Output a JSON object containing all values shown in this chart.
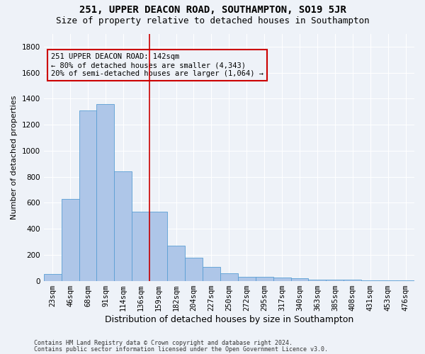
{
  "title": "251, UPPER DEACON ROAD, SOUTHAMPTON, SO19 5JR",
  "subtitle": "Size of property relative to detached houses in Southampton",
  "xlabel": "Distribution of detached houses by size in Southampton",
  "ylabel": "Number of detached properties",
  "categories": [
    "23sqm",
    "46sqm",
    "68sqm",
    "91sqm",
    "114sqm",
    "136sqm",
    "159sqm",
    "182sqm",
    "204sqm",
    "227sqm",
    "250sqm",
    "272sqm",
    "295sqm",
    "317sqm",
    "340sqm",
    "363sqm",
    "385sqm",
    "408sqm",
    "431sqm",
    "453sqm",
    "476sqm"
  ],
  "values": [
    50,
    630,
    1310,
    1360,
    840,
    530,
    530,
    270,
    175,
    105,
    60,
    30,
    30,
    25,
    20,
    10,
    10,
    10,
    5,
    5,
    5
  ],
  "bar_color": "#aec6e8",
  "bar_edge_color": "#5a9fd4",
  "vline_x_idx": 5.5,
  "vline_color": "#cc0000",
  "annotation_text": "251 UPPER DEACON ROAD: 142sqm\n← 80% of detached houses are smaller (4,343)\n20% of semi-detached houses are larger (1,064) →",
  "annotation_box_color": "#cc0000",
  "ylim": [
    0,
    1900
  ],
  "yticks": [
    0,
    200,
    400,
    600,
    800,
    1000,
    1200,
    1400,
    1600,
    1800
  ],
  "footer1": "Contains HM Land Registry data © Crown copyright and database right 2024.",
  "footer2": "Contains public sector information licensed under the Open Government Licence v3.0.",
  "bg_color": "#eef2f8",
  "grid_color": "#ffffff",
  "title_fontsize": 10,
  "subtitle_fontsize": 9,
  "xlabel_fontsize": 9,
  "ylabel_fontsize": 8,
  "tick_fontsize": 7.5,
  "ann_fontsize": 7.5,
  "footer_fontsize": 6
}
